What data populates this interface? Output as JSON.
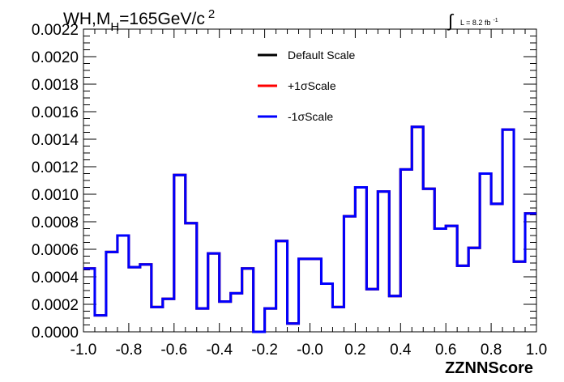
{
  "chart_data": {
    "type": "line",
    "title_main": "WH,M",
    "title_sub": "H",
    "title_rest": "=165GeV/c",
    "title_sup": "2",
    "lumi_text": "L = 8.2 fb",
    "lumi_sup": "-1",
    "xlabel": "ZZNNScore",
    "ylabel": "",
    "xlim": [
      -1.0,
      1.0
    ],
    "ylim": [
      0.0,
      0.0022
    ],
    "xticks": [
      "-1.0",
      "-0.8",
      "-0.6",
      "-0.4",
      "-0.2",
      "-0.0",
      "0.2",
      "0.4",
      "0.6",
      "0.8",
      "1.0"
    ],
    "yticks": [
      "0.0000",
      "0.0002",
      "0.0004",
      "0.0006",
      "0.0008",
      "0.0010",
      "0.0012",
      "0.0014",
      "0.0016",
      "0.0018",
      "0.0020",
      "0.0022"
    ],
    "bin_edges_start": -1.0,
    "bin_width": 0.05,
    "legend_position": "top-center",
    "series": [
      {
        "name": "Default Scale",
        "color": "#000000",
        "values": [
          0.00046,
          0.00012,
          0.00058,
          0.0007,
          0.00047,
          0.00049,
          0.00018,
          0.00024,
          0.00114,
          0.00079,
          0.00017,
          0.00057,
          0.00022,
          0.00028,
          0.00046,
          0.0,
          0.00017,
          0.00066,
          6e-05,
          0.00053,
          0.00053,
          0.00035,
          0.00018,
          0.00084,
          0.00105,
          0.00031,
          0.00102,
          0.00026,
          0.00118,
          0.00149,
          0.00104,
          0.00075,
          0.00077,
          0.00048,
          0.00061,
          0.00115,
          0.00093,
          0.00147,
          0.00051,
          0.00086
        ]
      },
      {
        "name": "+1σScale",
        "color": "#ff0000",
        "values": [
          0.00046,
          0.00012,
          0.00058,
          0.0007,
          0.00047,
          0.00049,
          0.00018,
          0.00024,
          0.00114,
          0.00079,
          0.00017,
          0.00057,
          0.00022,
          0.00028,
          0.00046,
          0.0,
          0.00017,
          0.00066,
          6e-05,
          0.00053,
          0.00053,
          0.00035,
          0.00018,
          0.00084,
          0.00105,
          0.00031,
          0.00102,
          0.00026,
          0.00118,
          0.00149,
          0.00104,
          0.00075,
          0.00077,
          0.00048,
          0.00061,
          0.00115,
          0.00093,
          0.00147,
          0.00051,
          0.00086
        ]
      },
      {
        "name": "-1σScale",
        "color": "#0000ff",
        "values": [
          0.00046,
          0.00012,
          0.00058,
          0.0007,
          0.00047,
          0.00049,
          0.00018,
          0.00024,
          0.00114,
          0.00079,
          0.00017,
          0.00057,
          0.00022,
          0.00028,
          0.00046,
          0.0,
          0.00017,
          0.00066,
          6e-05,
          0.00053,
          0.00053,
          0.00035,
          0.00018,
          0.00084,
          0.00105,
          0.00031,
          0.00102,
          0.00026,
          0.00118,
          0.00149,
          0.00104,
          0.00075,
          0.00077,
          0.00048,
          0.00061,
          0.00115,
          0.00093,
          0.00147,
          0.00051,
          0.00086
        ]
      }
    ]
  }
}
